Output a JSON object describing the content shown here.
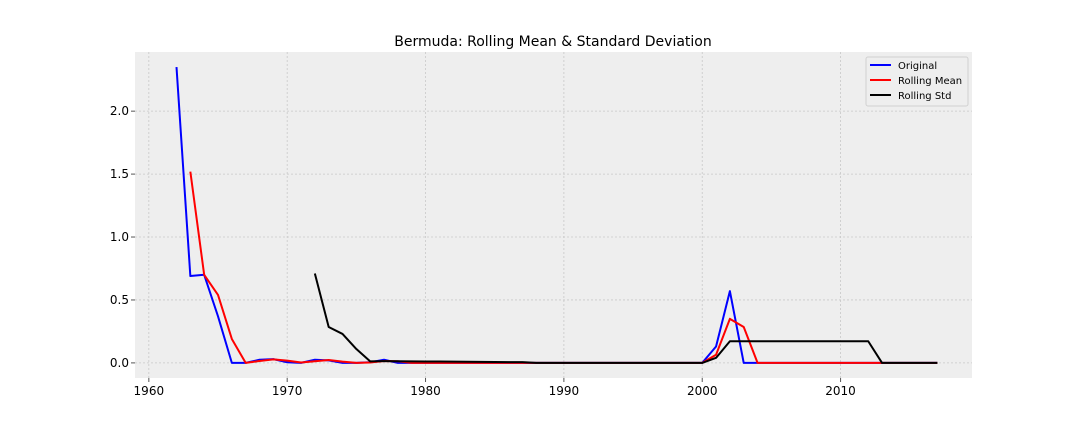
{
  "chart_data": {
    "type": "line",
    "title": "Bermuda: Rolling Mean & Standard Deviation",
    "xlabel": "",
    "ylabel": "",
    "xlim": [
      1959,
      2019.5
    ],
    "ylim": [
      -0.12,
      2.47
    ],
    "xticks": [
      1960,
      1970,
      1980,
      1990,
      2000,
      2010
    ],
    "yticks": [
      0.0,
      0.5,
      1.0,
      1.5,
      2.0
    ],
    "grid": true,
    "legend": "top-right",
    "series": [
      {
        "name": "Original",
        "color": "#0000ff",
        "points": [
          [
            1962,
            2.35
          ],
          [
            1963,
            0.69
          ],
          [
            1964,
            0.7
          ],
          [
            1965,
            0.37
          ],
          [
            1966,
            0.0
          ],
          [
            1967,
            0.0
          ],
          [
            1968,
            0.025
          ],
          [
            1969,
            0.03
          ],
          [
            1970,
            0.005
          ],
          [
            1971,
            0.0
          ],
          [
            1972,
            0.025
          ],
          [
            1973,
            0.02
          ],
          [
            1974,
            0.0
          ],
          [
            1975,
            0.0
          ],
          [
            1976,
            0.005
          ],
          [
            1977,
            0.025
          ],
          [
            1978,
            0.0
          ],
          [
            1979,
            0.0
          ],
          [
            1980,
            0.0
          ],
          [
            1981,
            0.0
          ],
          [
            1982,
            0.0
          ],
          [
            1983,
            0.0
          ],
          [
            1984,
            0.0
          ],
          [
            1985,
            0.0
          ],
          [
            1986,
            0.0
          ],
          [
            1987,
            0.0
          ],
          [
            1988,
            0.0
          ],
          [
            1989,
            0.0
          ],
          [
            1990,
            0.0
          ],
          [
            1991,
            0.0
          ],
          [
            1992,
            0.0
          ],
          [
            1993,
            0.0
          ],
          [
            1994,
            0.0
          ],
          [
            1995,
            0.0
          ],
          [
            1996,
            0.0
          ],
          [
            1997,
            0.0
          ],
          [
            1998,
            0.0
          ],
          [
            1999,
            0.0
          ],
          [
            2000,
            0.0
          ],
          [
            2001,
            0.13
          ],
          [
            2002,
            0.57
          ],
          [
            2003,
            0.0
          ],
          [
            2004,
            0.0
          ],
          [
            2005,
            0.0
          ],
          [
            2006,
            0.0
          ],
          [
            2007,
            0.0
          ],
          [
            2008,
            0.0
          ],
          [
            2009,
            0.0
          ],
          [
            2010,
            0.0
          ],
          [
            2011,
            0.0
          ],
          [
            2012,
            0.0
          ],
          [
            2013,
            0.0
          ],
          [
            2014,
            0.0
          ],
          [
            2015,
            0.0
          ],
          [
            2016,
            0.0
          ],
          [
            2017,
            0.0
          ]
        ]
      },
      {
        "name": "Rolling Mean",
        "color": "#ff0000",
        "points": [
          [
            1963,
            1.52
          ],
          [
            1964,
            0.7
          ],
          [
            1965,
            0.54
          ],
          [
            1966,
            0.19
          ],
          [
            1967,
            0.0
          ],
          [
            1968,
            0.015
          ],
          [
            1969,
            0.028
          ],
          [
            1970,
            0.018
          ],
          [
            1971,
            0.003
          ],
          [
            1972,
            0.013
          ],
          [
            1973,
            0.023
          ],
          [
            1974,
            0.01
          ],
          [
            1975,
            0.0
          ],
          [
            1976,
            0.003
          ],
          [
            1977,
            0.015
          ],
          [
            1978,
            0.013
          ],
          [
            1979,
            0.0
          ],
          [
            1980,
            0.0
          ],
          [
            1981,
            0.0
          ],
          [
            1982,
            0.0
          ],
          [
            1983,
            0.0
          ],
          [
            1984,
            0.0
          ],
          [
            1985,
            0.0
          ],
          [
            1986,
            0.0
          ],
          [
            1987,
            0.0
          ],
          [
            1988,
            0.0
          ],
          [
            1989,
            0.0
          ],
          [
            1990,
            0.0
          ],
          [
            1991,
            0.0
          ],
          [
            1992,
            0.0
          ],
          [
            1993,
            0.0
          ],
          [
            1994,
            0.0
          ],
          [
            1995,
            0.0
          ],
          [
            1996,
            0.0
          ],
          [
            1997,
            0.0
          ],
          [
            1998,
            0.0
          ],
          [
            1999,
            0.0
          ],
          [
            2000,
            0.0
          ],
          [
            2001,
            0.065
          ],
          [
            2002,
            0.35
          ],
          [
            2003,
            0.285
          ],
          [
            2004,
            0.0
          ],
          [
            2005,
            0.0
          ],
          [
            2006,
            0.0
          ],
          [
            2007,
            0.0
          ],
          [
            2008,
            0.0
          ],
          [
            2009,
            0.0
          ],
          [
            2010,
            0.0
          ],
          [
            2011,
            0.0
          ],
          [
            2012,
            0.0
          ],
          [
            2013,
            0.0
          ],
          [
            2014,
            0.0
          ],
          [
            2015,
            0.0
          ],
          [
            2016,
            0.0
          ],
          [
            2017,
            0.0
          ]
        ]
      },
      {
        "name": "Rolling Std",
        "color": "#000000",
        "points": [
          [
            1972,
            0.71
          ],
          [
            1973,
            0.285
          ],
          [
            1974,
            0.23
          ],
          [
            1975,
            0.11
          ],
          [
            1976,
            0.012
          ],
          [
            1977,
            0.014
          ],
          [
            1978,
            0.013
          ],
          [
            1979,
            0.012
          ],
          [
            1980,
            0.011
          ],
          [
            1981,
            0.011
          ],
          [
            1982,
            0.01
          ],
          [
            1983,
            0.009
          ],
          [
            1984,
            0.008
          ],
          [
            1985,
            0.007
          ],
          [
            1986,
            0.006
          ],
          [
            1987,
            0.006
          ],
          [
            1988,
            0.0
          ],
          [
            1989,
            0.0
          ],
          [
            1990,
            0.0
          ],
          [
            1991,
            0.0
          ],
          [
            1992,
            0.0
          ],
          [
            1993,
            0.0
          ],
          [
            1994,
            0.0
          ],
          [
            1995,
            0.0
          ],
          [
            1996,
            0.0
          ],
          [
            1997,
            0.0
          ],
          [
            1998,
            0.0
          ],
          [
            1999,
            0.0
          ],
          [
            2000,
            0.0
          ],
          [
            2001,
            0.04
          ],
          [
            2002,
            0.172
          ],
          [
            2003,
            0.172
          ],
          [
            2004,
            0.172
          ],
          [
            2005,
            0.172
          ],
          [
            2006,
            0.172
          ],
          [
            2007,
            0.172
          ],
          [
            2008,
            0.172
          ],
          [
            2009,
            0.172
          ],
          [
            2010,
            0.172
          ],
          [
            2011,
            0.172
          ],
          [
            2012,
            0.172
          ],
          [
            2013,
            0.0
          ],
          [
            2014,
            0.0
          ],
          [
            2015,
            0.0
          ],
          [
            2016,
            0.0
          ],
          [
            2017,
            0.0
          ]
        ]
      }
    ]
  }
}
